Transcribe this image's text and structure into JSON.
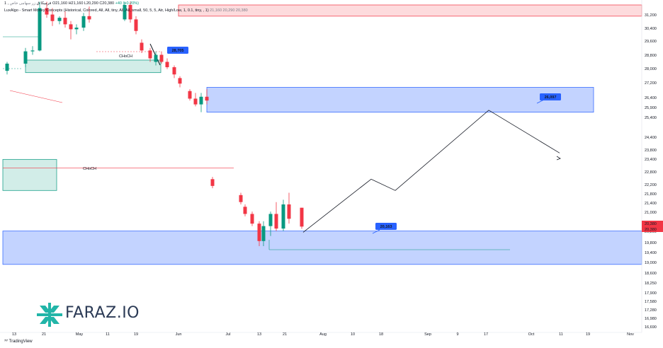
{
  "header": {
    "line1_prefix": "1 ,",
    "symbol": "فرمیکا ق",
    "symbol_note": "زر سهامی خاص",
    "ohlc": "O21,160 H21,160 L20,290 C20,380",
    "change": "+40 (+0.20%)",
    "indicator_line": "LuxAlgo - Smart Money Concepts (Historical, Colored, All, All, tiny, All, All, small, 50, 5, 5, Atr, High/Low, 1, 0.1, tiny, , 1)",
    "indicator_values": "21,160  20,290  20,380"
  },
  "logo": {
    "text": "FARAZ.IO"
  },
  "footer": {
    "tradingview": "TradingView"
  },
  "price_axis": {
    "labels": [
      "31,200",
      "30,400",
      "29,600",
      "28,800",
      "28,000",
      "27,200",
      "26,400",
      "25,900",
      "25,400",
      "24,400",
      "23,800",
      "23,400",
      "22,800",
      "22,200",
      "21,800",
      "21,400",
      "21,000",
      "20,400",
      "20,200",
      "19,800",
      "19,400",
      "19,000",
      "18,600",
      "18,250",
      "17,900",
      "17,580",
      "17,280",
      "16,980",
      "16,690"
    ],
    "current_price": "20,380",
    "current_price_2": "20,380"
  },
  "time_axis": {
    "labels": [
      "13",
      "21",
      "May",
      "11",
      "19",
      "Jun",
      "Jul",
      "13",
      "21",
      "Aug",
      "10",
      "18",
      "Sep",
      "9",
      "17",
      "Oct",
      "11",
      "19",
      "Nov"
    ]
  },
  "chart_data": {
    "type": "candlestick",
    "annotations": {
      "upper_zone_label": "26,097",
      "lower_zone_label": "20,163",
      "swing_label": "28,705",
      "bos_label": "CHoCH",
      "choch_label": "CHoCH"
    },
    "projection_path": [
      {
        "date": "Jul 24",
        "price": 20150
      },
      {
        "date": "Aug 6",
        "price": 22400
      },
      {
        "date": "Aug 20",
        "price": 21900
      },
      {
        "date": "Sep 18",
        "price": 25700
      },
      {
        "date": "Oct 12",
        "price": 23600
      }
    ],
    "zones": [
      {
        "name": "upper-demand",
        "low": 25600,
        "high": 26900,
        "color": "#2962ff"
      },
      {
        "name": "lower-demand",
        "low": 18900,
        "high": 20200,
        "color": "#2962ff"
      },
      {
        "name": "supply-top",
        "low": 31000,
        "high": 31700,
        "color": "#f23645"
      },
      {
        "name": "demand-green-upper",
        "low": 27700,
        "high": 28400,
        "color": "#089981"
      },
      {
        "name": "demand-green-lower",
        "low": 21900,
        "high": 23300,
        "color": "#089981"
      }
    ],
    "candles": [
      {
        "o": 27800,
        "h": 28300,
        "l": 27600,
        "c": 28200
      },
      {
        "o": 28200,
        "h": 29100,
        "l": 28000,
        "c": 28900
      },
      {
        "o": 28900,
        "h": 29200,
        "l": 28700,
        "c": 28950
      },
      {
        "o": 28950,
        "h": 31900,
        "l": 28900,
        "c": 31500
      },
      {
        "o": 31500,
        "h": 31900,
        "l": 30900,
        "c": 31100
      },
      {
        "o": 31100,
        "h": 31500,
        "l": 30400,
        "c": 30700
      },
      {
        "o": 30700,
        "h": 31000,
        "l": 30500,
        "c": 30900
      },
      {
        "o": 30900,
        "h": 31300,
        "l": 30300,
        "c": 30500
      },
      {
        "o": 30500,
        "h": 30700,
        "l": 29600,
        "c": 30200
      },
      {
        "o": 30200,
        "h": 30500,
        "l": 29900,
        "c": 30300
      },
      {
        "o": 30300,
        "h": 31200,
        "l": 30100,
        "c": 31000
      },
      {
        "o": 31000,
        "h": 31600,
        "l": 30600,
        "c": 30800
      },
      {
        "o": 30800,
        "h": 31900,
        "l": 30700,
        "c": 31700
      },
      {
        "o": 31700,
        "h": 31900,
        "l": 30600,
        "c": 30800
      },
      {
        "o": 30800,
        "h": 31000,
        "l": 29900,
        "c": 30100
      },
      {
        "o": 29400,
        "h": 29600,
        "l": 28800,
        "c": 28950
      },
      {
        "o": 28950,
        "h": 29100,
        "l": 28300,
        "c": 28500
      },
      {
        "o": 28300,
        "h": 28900,
        "l": 28100,
        "c": 28700
      },
      {
        "o": 28700,
        "h": 28900,
        "l": 28200,
        "c": 28300
      },
      {
        "o": 28300,
        "h": 28500,
        "l": 27900,
        "c": 28000
      },
      {
        "o": 28000,
        "h": 28100,
        "l": 27400,
        "c": 27600
      },
      {
        "o": 27400,
        "h": 27500,
        "l": 26900,
        "c": 27100
      },
      {
        "o": 26700,
        "h": 26800,
        "l": 26200,
        "c": 26300
      },
      {
        "o": 26300,
        "h": 26600,
        "l": 25900,
        "c": 26000
      },
      {
        "o": 26000,
        "h": 26600,
        "l": 25600,
        "c": 26400
      },
      {
        "o": 26400,
        "h": 26800,
        "l": 26000,
        "c": 26200
      },
      {
        "o": 22400,
        "h": 22500,
        "l": 22000,
        "c": 22100
      },
      {
        "o": 21700,
        "h": 21800,
        "l": 21300,
        "c": 21400
      },
      {
        "o": 21200,
        "h": 21300,
        "l": 20800,
        "c": 20900
      },
      {
        "o": 20900,
        "h": 21000,
        "l": 20400,
        "c": 20500
      },
      {
        "o": 20500,
        "h": 20600,
        "l": 19600,
        "c": 19800
      },
      {
        "o": 19800,
        "h": 20600,
        "l": 19600,
        "c": 20400
      },
      {
        "o": 20400,
        "h": 21000,
        "l": 20000,
        "c": 20900
      },
      {
        "o": 20900,
        "h": 21400,
        "l": 20200,
        "c": 20300
      },
      {
        "o": 20300,
        "h": 21500,
        "l": 20200,
        "c": 21300
      },
      {
        "o": 21300,
        "h": 21800,
        "l": 20500,
        "c": 20700
      },
      {
        "o": 21160,
        "h": 21160,
        "l": 20290,
        "c": 20380
      }
    ]
  }
}
